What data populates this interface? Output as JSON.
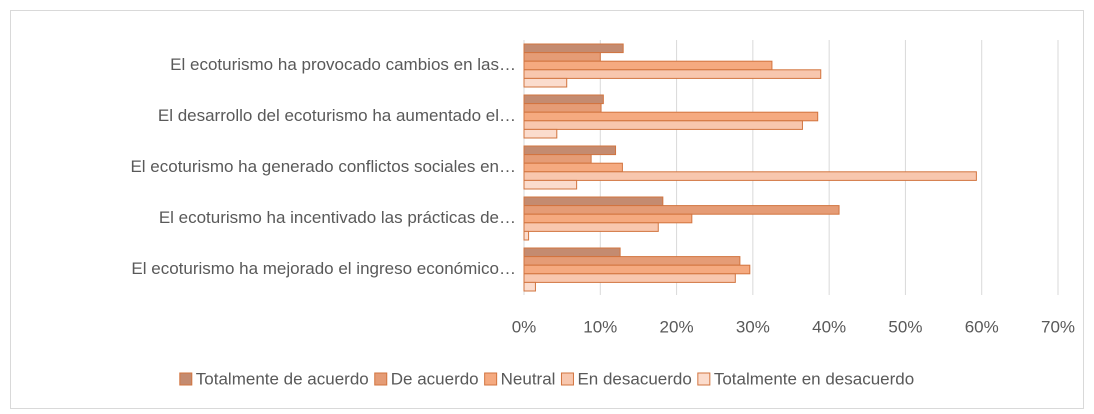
{
  "chart_data": {
    "type": "bar",
    "orientation": "horizontal",
    "categories": [
      "El ecoturismo ha provocado cambios en las…",
      "El desarrollo del ecoturismo ha aumentado el…",
      "El ecoturismo ha generado conflictos sociales en…",
      "El ecoturismo ha incentivado las prácticas de…",
      "El ecoturismo ha mejorado el ingreso económico…"
    ],
    "series": [
      {
        "name": "Totalmente de acuerdo",
        "color": "#c48b70",
        "values": [
          13,
          10.4,
          12,
          18.2,
          12.6
        ]
      },
      {
        "name": "De acuerdo",
        "color": "#e59c76",
        "values": [
          10,
          10.1,
          8.8,
          41.3,
          28.3
        ]
      },
      {
        "name": "Neutral",
        "color": "#f5aa80",
        "values": [
          32.5,
          38.5,
          12.9,
          22,
          29.6
        ]
      },
      {
        "name": "En desacuerdo",
        "color": "#f8c7ae",
        "values": [
          38.9,
          36.5,
          59.3,
          17.6,
          27.7
        ]
      },
      {
        "name": "Totalmente en desacuerdo",
        "color": "#fbdccd",
        "values": [
          5.6,
          4.3,
          6.9,
          0.6,
          1.5
        ]
      }
    ],
    "xlim": [
      0,
      70
    ],
    "xticks": [
      {
        "value": 0,
        "label": "0%"
      },
      {
        "value": 10,
        "label": "10%"
      },
      {
        "value": 20,
        "label": "20%"
      },
      {
        "value": 30,
        "label": "30%"
      },
      {
        "value": 40,
        "label": "40%"
      },
      {
        "value": 50,
        "label": "50%"
      },
      {
        "value": 60,
        "label": "60%"
      },
      {
        "value": 70,
        "label": "70%"
      }
    ],
    "grid": true,
    "legend": "bottom"
  }
}
